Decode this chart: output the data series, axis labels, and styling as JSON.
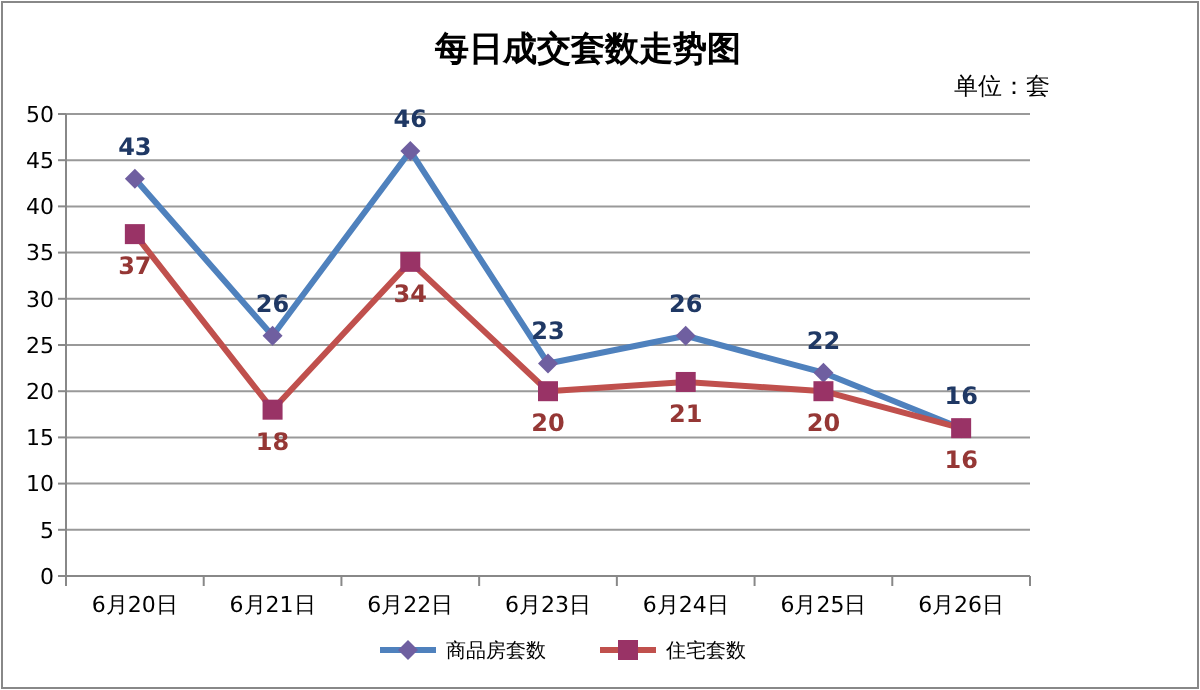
{
  "chart_data": {
    "type": "line",
    "title": "每日成交套数走势图",
    "annotations": [
      "单位：套"
    ],
    "categories": [
      "6月20日",
      "6月21日",
      "6月22日",
      "6月23日",
      "6月24日",
      "6月25日",
      "6月26日"
    ],
    "series": [
      {
        "name": "商品房套数",
        "color": "#4f81bd",
        "marker": "diamond",
        "values": [
          43,
          26,
          46,
          23,
          26,
          22,
          16
        ]
      },
      {
        "name": "住宅套数",
        "color": "#c0504d",
        "marker": "square",
        "values": [
          37,
          18,
          34,
          20,
          21,
          20,
          16
        ]
      }
    ],
    "ylim": [
      0,
      50
    ],
    "yticks": [
      0,
      5,
      10,
      15,
      20,
      25,
      30,
      35,
      40,
      45,
      50
    ],
    "grid": "y",
    "legend": "bottom",
    "data_labels": true
  }
}
